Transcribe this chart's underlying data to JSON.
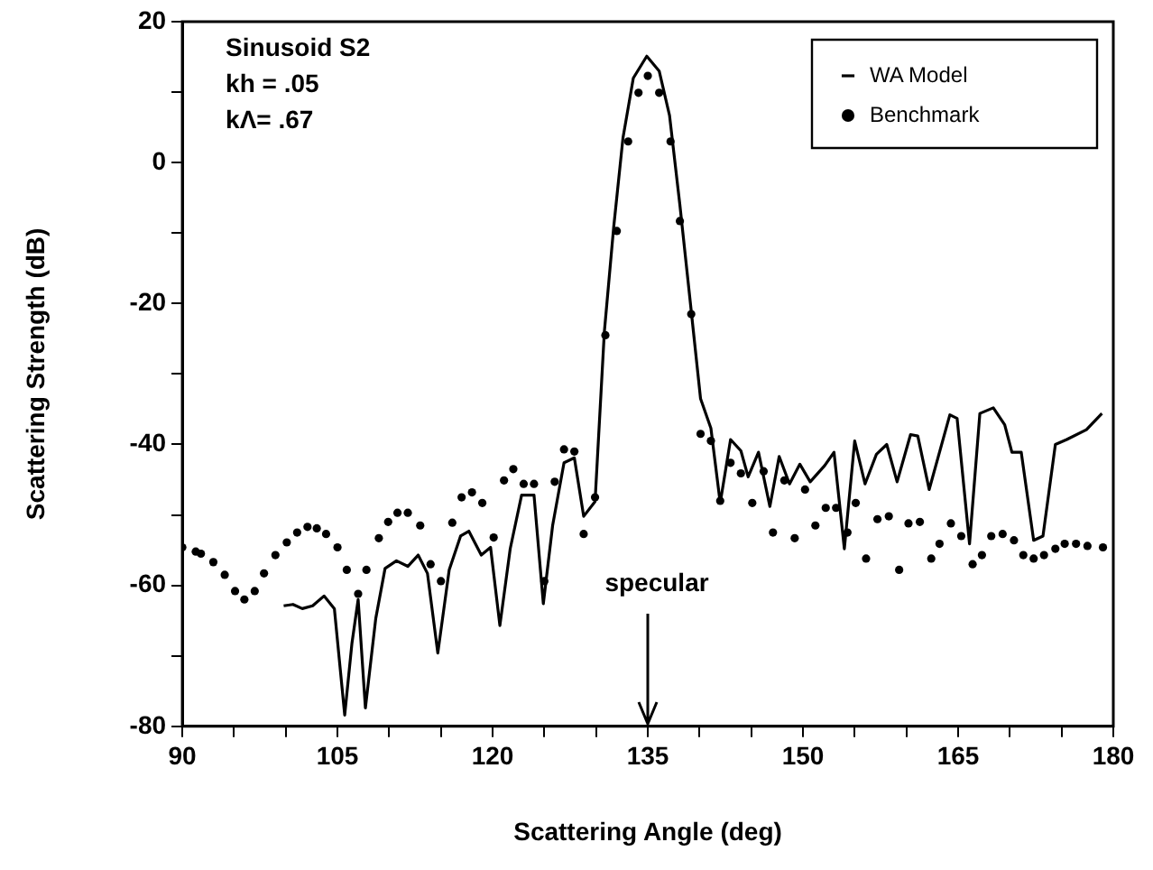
{
  "chart_data": {
    "type": "line",
    "xlabel": "Scattering Angle (deg)",
    "ylabel": "Scattering Strength (dB)",
    "xlim": [
      90,
      180
    ],
    "ylim": [
      -80,
      20
    ],
    "xticks": [
      90,
      {
        "value": 95,
        "label": null
      },
      {
        "value": 100,
        "label": null
      },
      105,
      {
        "value": 110,
        "label": null
      },
      {
        "value": 115,
        "label": null
      },
      120,
      {
        "value": 125,
        "label": null
      },
      {
        "value": 130,
        "label": null
      },
      135,
      {
        "value": 140,
        "label": null
      },
      {
        "value": 145,
        "label": null
      },
      150,
      {
        "value": 155,
        "label": null
      },
      {
        "value": 160,
        "label": null
      },
      165,
      {
        "value": 170,
        "label": null
      },
      {
        "value": 175,
        "label": null
      },
      180
    ],
    "yticks": [
      -80,
      {
        "value": -70,
        "label": null
      },
      -60,
      {
        "value": -50,
        "label": null
      },
      -40,
      {
        "value": -30,
        "label": null
      },
      -20,
      {
        "value": -10,
        "label": null
      },
      0,
      {
        "value": 10,
        "label": null
      },
      20
    ],
    "grid": false,
    "legend": "top right",
    "annotations": [
      "Sinusoid S2",
      "kh = .05",
      "kΛ= .67",
      "specular"
    ],
    "series": [
      {
        "name": "WA Model",
        "color": "#000000",
        "marker": "none",
        "line_style": "solid",
        "x": [
          99.8,
          100.7,
          101.6,
          102.6,
          103.7,
          104.7,
          105.7,
          106.4,
          107,
          107.7,
          108.7,
          109.6,
          110.7,
          111.8,
          112.8,
          113.7,
          114.7,
          115.8,
          116.9,
          117.7,
          118.9,
          119.8,
          120.7,
          121.7,
          122.8,
          124,
          124.9,
          125.8,
          126.9,
          127.9,
          128.8,
          129.9,
          130.8,
          131.7,
          132.6,
          133.6,
          134.9,
          136.1,
          137.1,
          138.1,
          139.1,
          140.1,
          141.1,
          142,
          143,
          144,
          144.7,
          145.7,
          146.8,
          147.7,
          148.7,
          149.7,
          150.7,
          152.1,
          153,
          154,
          155,
          156,
          157.1,
          158.1,
          159.1,
          160.4,
          161.1,
          162.2,
          164.2,
          164.9,
          166.1,
          167.1,
          168.4,
          169.5,
          170.2,
          171.1,
          172.3,
          173.2,
          174.4,
          175.5,
          177.4,
          178.9
        ],
        "values": [
          -62.9,
          -62.7,
          -63.3,
          -62.9,
          -61.5,
          -63.3,
          -78.4,
          -68.2,
          -62,
          -77.4,
          -64.7,
          -57.6,
          -56.5,
          -57.3,
          -55.7,
          -58.3,
          -69.6,
          -57.8,
          -53,
          -52.3,
          -55.7,
          -54.6,
          -65.7,
          -54.8,
          -47.2,
          -47.2,
          -62.6,
          -51.5,
          -42.6,
          -41.9,
          -50.2,
          -48.1,
          -24,
          -9.2,
          3.5,
          12,
          15.1,
          13,
          6.7,
          -6,
          -19.7,
          -33.5,
          -37.7,
          -48.3,
          -39.3,
          -40.9,
          -44.6,
          -41.1,
          -48.8,
          -41.7,
          -45.6,
          -42.8,
          -45.3,
          -43,
          -41.1,
          -54.8,
          -39.5,
          -45.6,
          -41.4,
          -40,
          -45.3,
          -38.6,
          -38.8,
          -46.4,
          -35.8,
          -36.3,
          -54.1,
          -35.6,
          -34.8,
          -37.2,
          -41.1,
          -41.1,
          -53.6,
          -53,
          -40,
          -39.3,
          -37.9,
          -35.6
        ]
      },
      {
        "name": "Benchmark",
        "type": "scatter",
        "color": "#000000",
        "marker": "circle",
        "x": [
          90,
          91.3,
          91.8,
          93,
          94.1,
          95.1,
          96,
          97,
          97.9,
          99,
          100.1,
          101.1,
          102.1,
          103,
          103.9,
          105,
          105.9,
          107,
          107.8,
          109,
          109.9,
          110.8,
          111.8,
          113,
          114,
          115,
          116.1,
          117,
          118,
          119,
          120.1,
          121.1,
          122,
          123,
          124,
          125,
          126,
          126.9,
          127.9,
          128.8,
          129.9,
          130.9,
          132,
          133.1,
          134.1,
          135,
          136.1,
          137.2,
          138.1,
          139.2,
          140.1,
          141.1,
          142,
          143,
          144,
          145.1,
          146.2,
          147.1,
          148.2,
          149.2,
          150.2,
          151.2,
          152.2,
          153.2,
          154.3,
          155.1,
          156.1,
          157.2,
          158.3,
          159.3,
          160.2,
          161.3,
          162.4,
          163.2,
          164.3,
          165.3,
          166.4,
          167.3,
          168.2,
          169.3,
          170.4,
          171.3,
          172.3,
          173.3,
          174.4,
          175.3,
          176.4,
          177.5,
          179
        ],
        "values": [
          -54.6,
          -55.2,
          -55.5,
          -56.7,
          -58.5,
          -60.8,
          -62,
          -60.8,
          -58.3,
          -55.7,
          -53.9,
          -52.5,
          -51.7,
          -51.9,
          -52.7,
          -54.6,
          -57.8,
          -61.2,
          -57.8,
          -53.3,
          -51,
          -49.7,
          -49.7,
          -51.5,
          -57,
          -59.4,
          -51.1,
          -47.5,
          -46.8,
          -48.3,
          -53.2,
          -45.1,
          -43.5,
          -45.6,
          -45.6,
          -59.4,
          -45.3,
          -40.7,
          -41,
          -52.7,
          -47.5,
          -24.5,
          -9.7,
          3,
          9.9,
          12.3,
          9.9,
          3,
          -8.3,
          -21.5,
          -38.5,
          -39.5,
          -48,
          -42.6,
          -44.1,
          -48.3,
          -43.8,
          -52.5,
          -45.1,
          -53.3,
          -46.4,
          -51.5,
          -49,
          -49,
          -52.5,
          -48.3,
          -56.2,
          -50.6,
          -50.2,
          -57.8,
          -51.2,
          -51,
          -56.2,
          -54.1,
          -51.2,
          -53,
          -57,
          -55.7,
          -53,
          -52.7,
          -53.6,
          -55.7,
          -56.2,
          -55.7,
          -54.8,
          -54.1,
          -54.1,
          -54.4,
          -54.6
        ]
      }
    ]
  }
}
